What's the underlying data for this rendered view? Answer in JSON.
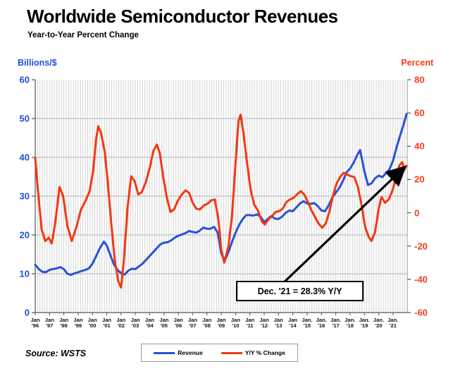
{
  "title": "Worldwide Semiconductor Revenues",
  "subtitle": "Year-to-Year Percent Change",
  "left_axis": {
    "label": "Billions/$",
    "color": "#1d4fe0",
    "ticks": [
      0,
      10,
      20,
      30,
      40,
      50,
      60
    ]
  },
  "right_axis": {
    "label": "Percent",
    "color": "#ff3814",
    "ticks": [
      -60,
      -40,
      -20,
      0,
      20,
      40,
      60,
      80
    ]
  },
  "x_axis": {
    "labels": [
      {
        "month": "Jan",
        "year": "'96"
      },
      {
        "month": "Jan",
        "year": "'97"
      },
      {
        "month": "Jan",
        "year": "'98"
      },
      {
        "month": "Jan",
        "year": "'99"
      },
      {
        "month": "Jan",
        "year": "'00"
      },
      {
        "month": "Jan",
        "year": "'01"
      },
      {
        "month": "Jan",
        "year": "'02"
      },
      {
        "month": "Jan",
        "year": "'03"
      },
      {
        "month": "Jan",
        "year": "'04"
      },
      {
        "month": "Jan",
        "year": "'05"
      },
      {
        "month": "Jan",
        "year": "'06"
      },
      {
        "month": "Jan",
        "year": "'07"
      },
      {
        "month": "Jan",
        "year": "'08"
      },
      {
        "month": "Jan",
        "year": "'09"
      },
      {
        "month": "Jan",
        "year": "'10"
      },
      {
        "month": "Jan",
        "year": "'11"
      },
      {
        "month": "Jan",
        "year": "'12"
      },
      {
        "month": "Jan",
        "year": "'13"
      },
      {
        "month": "Jan",
        "year": "'14"
      },
      {
        "month": "Jan.",
        "year": "'15"
      },
      {
        "month": "Jan.",
        "year": "'16"
      },
      {
        "month": "Jan.",
        "year": "'17"
      },
      {
        "month": "Jan.",
        "year": "'18"
      },
      {
        "month": "Jan.",
        "year": "'19"
      },
      {
        "month": "Jan.",
        "year": "'20"
      },
      {
        "month": "Jan.",
        "year": "'21"
      }
    ]
  },
  "annotation": {
    "text": "Dec. '21 = 28.3% Y/Y"
  },
  "legend": [
    {
      "label": "Revenue",
      "color": "#2a52d4"
    },
    {
      "label": "Y/Y % Change",
      "color": "#f23812"
    }
  ],
  "source": "Source: WSTS",
  "chart_data": {
    "type": "line",
    "title": "Worldwide Semiconductor Revenues",
    "subtitle": "Year-to-Year Percent Change",
    "x_range": [
      1996,
      2022
    ],
    "left_ylim": [
      0,
      60
    ],
    "right_ylim": [
      -60,
      80
    ],
    "grid": {
      "vertical_every_months": 2,
      "horizontal_left_ticks": [
        10,
        20,
        30,
        40,
        50
      ]
    },
    "legend_position": "bottom-center",
    "annotation": {
      "text": "Dec. '21 = 28.3% Y/Y",
      "points_to": {
        "x": 2021.95,
        "y_right": 28.3
      }
    },
    "series": [
      {
        "name": "Revenue",
        "axis": "left",
        "units": "billions $/month",
        "color": "#2a52d4",
        "x": [
          1996.0,
          1996.25,
          1996.5,
          1996.75,
          1997.0,
          1997.25,
          1997.5,
          1997.75,
          1998.0,
          1998.25,
          1998.5,
          1998.75,
          1999.0,
          1999.25,
          1999.5,
          1999.75,
          2000.0,
          2000.25,
          2000.5,
          2000.8,
          2001.0,
          2001.25,
          2001.5,
          2001.75,
          2002.0,
          2002.25,
          2002.5,
          2002.75,
          2003.0,
          2003.25,
          2003.5,
          2003.75,
          2004.0,
          2004.25,
          2004.5,
          2004.75,
          2005.0,
          2005.25,
          2005.5,
          2005.75,
          2006.0,
          2006.25,
          2006.5,
          2006.75,
          2007.0,
          2007.25,
          2007.5,
          2007.75,
          2008.0,
          2008.25,
          2008.5,
          2008.75,
          2009.0,
          2009.25,
          2009.5,
          2009.75,
          2010.0,
          2010.25,
          2010.5,
          2010.75,
          2011.0,
          2011.25,
          2011.5,
          2011.75,
          2012.0,
          2012.25,
          2012.5,
          2012.75,
          2013.0,
          2013.25,
          2013.5,
          2013.75,
          2014.0,
          2014.25,
          2014.5,
          2014.75,
          2015.0,
          2015.25,
          2015.5,
          2015.75,
          2016.0,
          2016.25,
          2016.5,
          2016.75,
          2017.0,
          2017.25,
          2017.5,
          2017.75,
          2018.0,
          2018.25,
          2018.5,
          2018.7,
          2019.0,
          2019.25,
          2019.5,
          2019.75,
          2020.0,
          2020.25,
          2020.5,
          2020.75,
          2021.0,
          2021.25,
          2021.5,
          2021.75,
          2021.95
        ],
        "values": [
          12.3,
          11.2,
          10.5,
          10.4,
          11.0,
          11.2,
          11.4,
          11.7,
          11.2,
          10.0,
          9.7,
          10.1,
          10.4,
          10.7,
          11.0,
          11.4,
          12.6,
          14.5,
          16.5,
          18.3,
          17.3,
          14.8,
          12.4,
          11.0,
          10.1,
          9.8,
          10.8,
          11.3,
          11.2,
          11.9,
          12.6,
          13.6,
          14.6,
          15.6,
          16.6,
          17.6,
          18.0,
          18.1,
          18.6,
          19.3,
          19.8,
          20.1,
          20.5,
          21.0,
          20.8,
          20.6,
          21.1,
          21.9,
          21.6,
          21.6,
          22.1,
          20.6,
          15.2,
          13.4,
          15.6,
          18.2,
          20.6,
          22.6,
          24.1,
          25.1,
          25.1,
          25.0,
          25.3,
          24.7,
          23.3,
          24.1,
          24.9,
          24.2,
          24.1,
          24.7,
          25.7,
          26.3,
          26.1,
          27.1,
          28.1,
          28.7,
          28.1,
          28.0,
          28.2,
          27.4,
          26.3,
          26.1,
          27.6,
          29.6,
          30.9,
          32.1,
          33.9,
          36.1,
          37.1,
          38.6,
          40.6,
          41.9,
          36.4,
          32.9,
          33.3,
          34.6,
          35.3,
          34.9,
          35.9,
          36.9,
          39.1,
          42.6,
          45.6,
          48.6,
          51.2
        ]
      },
      {
        "name": "Y/Y % Change",
        "axis": "right",
        "units": "percent",
        "color": "#f23812",
        "x": [
          1996.0,
          1996.2,
          1996.45,
          1996.7,
          1996.95,
          1997.15,
          1997.4,
          1997.7,
          1997.95,
          1998.25,
          1998.55,
          1998.9,
          1999.2,
          1999.5,
          1999.8,
          2000.05,
          2000.25,
          2000.4,
          2000.6,
          2000.85,
          2001.05,
          2001.3,
          2001.55,
          2001.8,
          2002.0,
          2002.2,
          2002.45,
          2002.7,
          2002.95,
          2003.2,
          2003.45,
          2003.75,
          2004.0,
          2004.25,
          2004.5,
          2004.7,
          2004.95,
          2005.2,
          2005.45,
          2005.7,
          2005.95,
          2006.2,
          2006.5,
          2006.75,
          2007.0,
          2007.25,
          2007.5,
          2007.8,
          2008.05,
          2008.3,
          2008.55,
          2008.8,
          2009.0,
          2009.2,
          2009.5,
          2009.75,
          2010.0,
          2010.2,
          2010.35,
          2010.55,
          2010.8,
          2011.05,
          2011.3,
          2011.55,
          2011.85,
          2012.05,
          2012.3,
          2012.55,
          2012.8,
          2013.05,
          2013.3,
          2013.55,
          2013.8,
          2014.05,
          2014.3,
          2014.55,
          2014.8,
          2015.05,
          2015.3,
          2015.55,
          2015.8,
          2016.05,
          2016.3,
          2016.55,
          2016.8,
          2017.05,
          2017.3,
          2017.55,
          2017.8,
          2018.05,
          2018.3,
          2018.55,
          2018.8,
          2019.05,
          2019.3,
          2019.5,
          2019.75,
          2020.0,
          2020.2,
          2020.45,
          2020.7,
          2020.95,
          2021.2,
          2021.45,
          2021.65,
          2021.78,
          2021.95
        ],
        "values": [
          33,
          12,
          -10,
          -17,
          -15,
          -18.5,
          -6,
          15.5,
          10,
          -8,
          -17,
          -8,
          2,
          7,
          13,
          25,
          44,
          52,
          48,
          37,
          20,
          -5,
          -28,
          -41,
          -45,
          -28,
          3,
          22,
          19,
          11,
          12.5,
          19,
          27,
          37,
          41,
          36,
          21,
          9,
          0.5,
          2,
          7,
          10.5,
          13.5,
          12,
          6,
          2.5,
          2,
          4.5,
          5.5,
          7.5,
          8,
          -4,
          -22,
          -30,
          -20,
          -2,
          30,
          55,
          59,
          48,
          30,
          14,
          5,
          1.5,
          -5.5,
          -7,
          -4,
          -2,
          0.5,
          1,
          2.5,
          6.5,
          8,
          9,
          11,
          13,
          11,
          6.5,
          1.5,
          -2.5,
          -6.5,
          -9,
          -6.5,
          0.5,
          10,
          17.5,
          21.5,
          24,
          23,
          22,
          21.5,
          15.5,
          5,
          -8.5,
          -14.5,
          -17,
          -11.5,
          2.5,
          9.5,
          6,
          8,
          13,
          21,
          28.5,
          30.5,
          25.8,
          28.3
        ]
      }
    ]
  }
}
